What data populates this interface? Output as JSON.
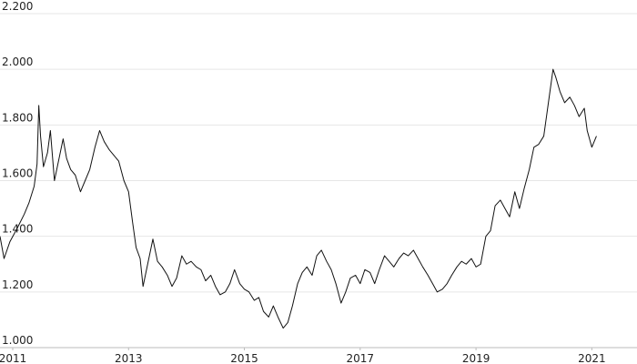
{
  "chart_data": {
    "type": "line",
    "color": "#111111",
    "grid": true,
    "x": [
      2010.78,
      2010.85,
      2010.95,
      2011.08,
      2011.2,
      2011.28,
      2011.37,
      2011.42,
      2011.45,
      2011.48,
      2011.53,
      2011.6,
      2011.65,
      2011.72,
      2011.78,
      2011.87,
      2011.93,
      2012.0,
      2012.08,
      2012.17,
      2012.25,
      2012.33,
      2012.42,
      2012.5,
      2012.58,
      2012.67,
      2012.75,
      2012.83,
      2012.92,
      2013.0,
      2013.07,
      2013.13,
      2013.2,
      2013.25,
      2013.33,
      2013.42,
      2013.5,
      2013.58,
      2013.67,
      2013.75,
      2013.83,
      2013.92,
      2014.0,
      2014.08,
      2014.17,
      2014.25,
      2014.33,
      2014.42,
      2014.5,
      2014.58,
      2014.67,
      2014.75,
      2014.83,
      2014.92,
      2015.0,
      2015.08,
      2015.17,
      2015.25,
      2015.33,
      2015.42,
      2015.5,
      2015.58,
      2015.67,
      2015.75,
      2015.83,
      2015.92,
      2016.0,
      2016.08,
      2016.17,
      2016.25,
      2016.33,
      2016.42,
      2016.5,
      2016.58,
      2016.67,
      2016.75,
      2016.83,
      2016.92,
      2017.0,
      2017.08,
      2017.17,
      2017.25,
      2017.33,
      2017.42,
      2017.5,
      2017.58,
      2017.67,
      2017.75,
      2017.83,
      2017.92,
      2018.0,
      2018.08,
      2018.17,
      2018.25,
      2018.33,
      2018.42,
      2018.5,
      2018.58,
      2018.67,
      2018.75,
      2018.83,
      2018.92,
      2019.0,
      2019.08,
      2019.17,
      2019.25,
      2019.33,
      2019.42,
      2019.5,
      2019.58,
      2019.67,
      2019.75,
      2019.83,
      2019.92,
      2020.0,
      2020.08,
      2020.17,
      2020.25,
      2020.33,
      2020.38,
      2020.45,
      2020.53,
      2020.62,
      2020.7,
      2020.78,
      2020.87,
      2020.92,
      2021.0,
      2021.08
    ],
    "values": [
      1400,
      1320,
      1380,
      1430,
      1480,
      1520,
      1580,
      1660,
      1870,
      1760,
      1650,
      1700,
      1780,
      1600,
      1660,
      1750,
      1680,
      1640,
      1620,
      1560,
      1600,
      1640,
      1720,
      1780,
      1740,
      1710,
      1690,
      1670,
      1600,
      1560,
      1450,
      1360,
      1320,
      1220,
      1300,
      1390,
      1310,
      1290,
      1260,
      1220,
      1250,
      1330,
      1300,
      1310,
      1290,
      1280,
      1240,
      1260,
      1220,
      1190,
      1200,
      1230,
      1280,
      1230,
      1210,
      1200,
      1170,
      1180,
      1130,
      1110,
      1150,
      1110,
      1070,
      1090,
      1150,
      1230,
      1270,
      1290,
      1260,
      1330,
      1350,
      1310,
      1280,
      1230,
      1160,
      1200,
      1250,
      1260,
      1230,
      1280,
      1270,
      1230,
      1280,
      1330,
      1310,
      1290,
      1320,
      1340,
      1330,
      1350,
      1320,
      1290,
      1260,
      1230,
      1200,
      1210,
      1230,
      1260,
      1290,
      1310,
      1300,
      1320,
      1290,
      1300,
      1400,
      1420,
      1510,
      1530,
      1500,
      1470,
      1560,
      1500,
      1570,
      1640,
      1720,
      1730,
      1760,
      1880,
      2000,
      1970,
      1920,
      1880,
      1900,
      1870,
      1830,
      1860,
      1780,
      1720,
      1760
    ],
    "xlim": [
      2010.78,
      2021.78
    ],
    "xticks": [
      2011,
      2013,
      2015,
      2017,
      2019,
      2021
    ],
    "ylim": [
      1000,
      2200
    ],
    "yticks": [
      {
        "value": 1000,
        "label": "1.000"
      },
      {
        "value": 1200,
        "label": "1.200"
      },
      {
        "value": 1400,
        "label": "1.400"
      },
      {
        "value": 1600,
        "label": "1.600"
      },
      {
        "value": 1800,
        "label": "1.800"
      },
      {
        "value": 2000,
        "label": "2.000"
      },
      {
        "value": 2200,
        "label": "2.200"
      }
    ]
  }
}
